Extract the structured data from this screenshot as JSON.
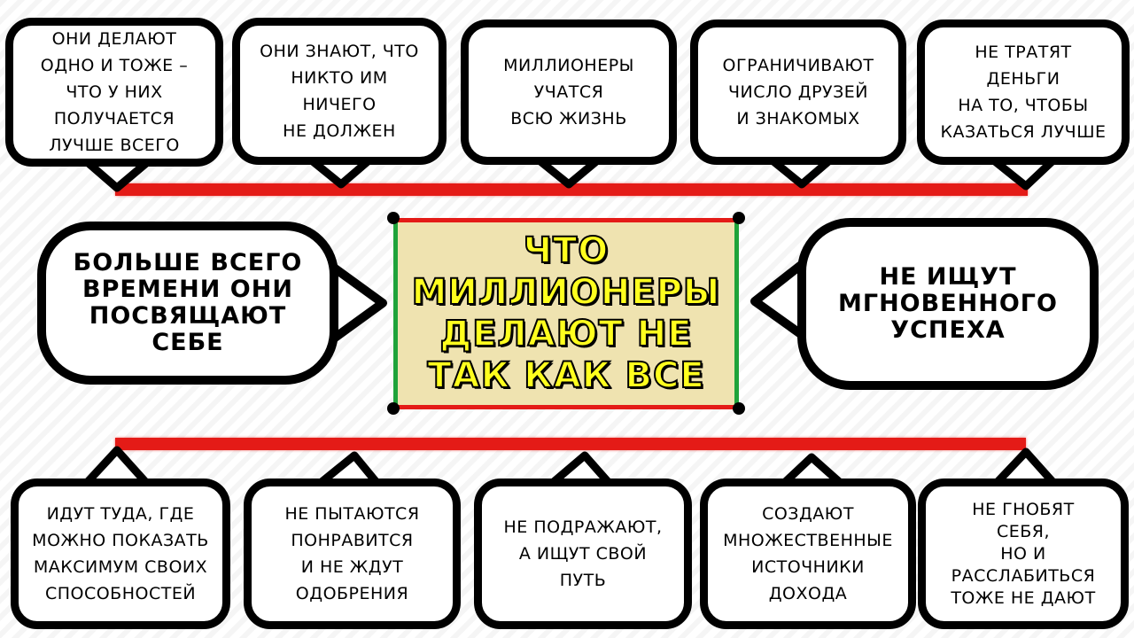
{
  "center": {
    "title": "ЧТО\nМИЛЛИОНЕРЫ\nДЕЛАЮТ НЕ\nТАК КАК ВСЕ"
  },
  "left": {
    "text": "БОЛЬШЕ ВСЕГО\nВРЕМЕНИ ОНИ\nПОСВЯЩАЮТ\nСЕБЕ"
  },
  "right": {
    "text": "НЕ ИЩУТ\nМГНОВЕННОГО\nУСПЕХА"
  },
  "top": [
    "ОНИ ДЕЛАЮТ\nОДНО И ТОЖЕ –\nЧТО У НИХ\nПОЛУЧАЕТСЯ\nЛУЧШЕ ВСЕГО",
    "ОНИ ЗНАЮТ, ЧТО\nНИКТО ИМ\nНИЧЕГО\nНЕ ДОЛЖЕН",
    "МИЛЛИОНЕРЫ\nУЧАТСЯ\nВСЮ ЖИЗНЬ",
    "ОГРАНИЧИВАЮТ\nЧИСЛО ДРУЗЕЙ\nИ ЗНАКОМЫХ",
    "НЕ ТРАТЯТ\nДЕНЬГИ\nНА ТО, ЧТОБЫ\nКАЗАТЬСЯ ЛУЧШЕ"
  ],
  "bottom": [
    "ИДУТ ТУДА, ГДЕ\nМОЖНО ПОКАЗАТЬ\nМАКСИМУМ СВОИХ\nСПОСОБНОСТЕЙ",
    "НЕ ПЫТАЮТСЯ\nПОНРАВИТСЯ\nИ НЕ ЖДУТ\nОДОБРЕНИЯ",
    "НЕ ПОДРАЖАЮТ,\nА ИЩУТ СВОЙ\nПУТЬ",
    "СОЗДАЮТ\nМНОЖЕСТВЕННЫЕ\nИСТОЧНИКИ\nДОХОДА",
    "НЕ ГНОБЯТ\nСЕБЯ,\nНО И\nРАССЛАБИТЬСЯ\nТОЖЕ НЕ ДАЮТ"
  ],
  "colors": {
    "connector_line": "#e41b17",
    "box_fill": "#efe3b0",
    "box_side_border": "#1fa33a",
    "title_fill": "#ffff1e",
    "bubble_border": "#000000"
  }
}
